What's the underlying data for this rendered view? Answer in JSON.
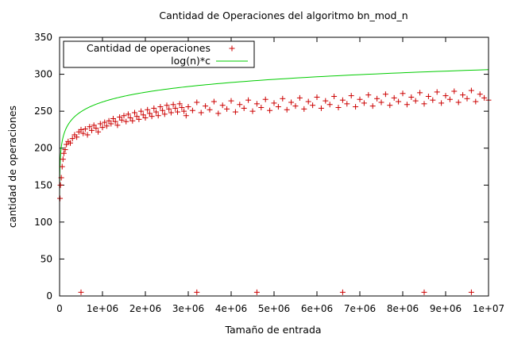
{
  "chart_data": {
    "type": "scatter",
    "title": "Cantidad de Operaciones del algoritmo bn_mod_n",
    "xlabel": "Tamaño de entrada",
    "ylabel": "cantidad de operaciones",
    "xlim": [
      0,
      10000000
    ],
    "ylim": [
      0,
      350
    ],
    "x_ticks": [
      0,
      1000000,
      2000000,
      3000000,
      4000000,
      5000000,
      6000000,
      7000000,
      8000000,
      9000000,
      10000000
    ],
    "x_tick_labels": [
      "0",
      "1e+06",
      "2e+06",
      "3e+06",
      "4e+06",
      "5e+06",
      "6e+06",
      "7e+06",
      "8e+06",
      "9e+06",
      "1e+07"
    ],
    "y_ticks": [
      0,
      50,
      100,
      150,
      200,
      250,
      300,
      350
    ],
    "y_tick_labels": [
      "0",
      "50",
      "100",
      "150",
      "200",
      "250",
      "300",
      "350"
    ],
    "grid": false,
    "legend_position": "top-left",
    "series": [
      {
        "name": "Cantidad de operaciones",
        "kind": "points",
        "marker": "plus",
        "color": "#cc0000",
        "points": [
          [
            10000,
            132
          ],
          [
            20000,
            150
          ],
          [
            40000,
            160
          ],
          [
            60000,
            175
          ],
          [
            80000,
            185
          ],
          [
            100000,
            193
          ],
          [
            130000,
            198
          ],
          [
            160000,
            205
          ],
          [
            200000,
            209
          ],
          [
            250000,
            207
          ],
          [
            300000,
            213
          ],
          [
            350000,
            218
          ],
          [
            400000,
            215
          ],
          [
            450000,
            222
          ],
          [
            500000,
            225
          ],
          [
            550000,
            220
          ],
          [
            600000,
            226
          ],
          [
            650000,
            218
          ],
          [
            700000,
            229
          ],
          [
            750000,
            224
          ],
          [
            800000,
            231
          ],
          [
            850000,
            227
          ],
          [
            900000,
            222
          ],
          [
            950000,
            233
          ],
          [
            1000000,
            228
          ],
          [
            1050000,
            235
          ],
          [
            1100000,
            230
          ],
          [
            1150000,
            237
          ],
          [
            1200000,
            233
          ],
          [
            1250000,
            240
          ],
          [
            1300000,
            236
          ],
          [
            1350000,
            231
          ],
          [
            1400000,
            242
          ],
          [
            1450000,
            238
          ],
          [
            1500000,
            244
          ],
          [
            1550000,
            236
          ],
          [
            1600000,
            246
          ],
          [
            1650000,
            241
          ],
          [
            1700000,
            237
          ],
          [
            1750000,
            248
          ],
          [
            1800000,
            243
          ],
          [
            1850000,
            239
          ],
          [
            1900000,
            250
          ],
          [
            1950000,
            245
          ],
          [
            2000000,
            241
          ],
          [
            2050000,
            252
          ],
          [
            2100000,
            247
          ],
          [
            2150000,
            243
          ],
          [
            2200000,
            254
          ],
          [
            2250000,
            249
          ],
          [
            2300000,
            244
          ],
          [
            2350000,
            256
          ],
          [
            2400000,
            251
          ],
          [
            2450000,
            246
          ],
          [
            2500000,
            258
          ],
          [
            2550000,
            253
          ],
          [
            2600000,
            248
          ],
          [
            2650000,
            259
          ],
          [
            2700000,
            254
          ],
          [
            2750000,
            249
          ],
          [
            2800000,
            260
          ],
          [
            2850000,
            255
          ],
          [
            2900000,
            250
          ],
          [
            2950000,
            244
          ],
          [
            3000000,
            256
          ],
          [
            3100000,
            251
          ],
          [
            3200000,
            262
          ],
          [
            3300000,
            248
          ],
          [
            3400000,
            257
          ],
          [
            3500000,
            252
          ],
          [
            3600000,
            263
          ],
          [
            3700000,
            247
          ],
          [
            3800000,
            258
          ],
          [
            3900000,
            253
          ],
          [
            4000000,
            264
          ],
          [
            4100000,
            249
          ],
          [
            4200000,
            259
          ],
          [
            4300000,
            254
          ],
          [
            4400000,
            265
          ],
          [
            4500000,
            250
          ],
          [
            4600000,
            260
          ],
          [
            4700000,
            255
          ],
          [
            4800000,
            266
          ],
          [
            4900000,
            251
          ],
          [
            5000000,
            261
          ],
          [
            5100000,
            256
          ],
          [
            5200000,
            267
          ],
          [
            5300000,
            252
          ],
          [
            5400000,
            262
          ],
          [
            5500000,
            257
          ],
          [
            5600000,
            268
          ],
          [
            5700000,
            253
          ],
          [
            5800000,
            263
          ],
          [
            5900000,
            258
          ],
          [
            6000000,
            269
          ],
          [
            6100000,
            254
          ],
          [
            6200000,
            264
          ],
          [
            6300000,
            259
          ],
          [
            6400000,
            270
          ],
          [
            6500000,
            255
          ],
          [
            6600000,
            265
          ],
          [
            6700000,
            260
          ],
          [
            6800000,
            271
          ],
          [
            6900000,
            256
          ],
          [
            7000000,
            266
          ],
          [
            7100000,
            261
          ],
          [
            7200000,
            272
          ],
          [
            7300000,
            257
          ],
          [
            7400000,
            267
          ],
          [
            7500000,
            262
          ],
          [
            7600000,
            273
          ],
          [
            7700000,
            258
          ],
          [
            7800000,
            268
          ],
          [
            7900000,
            263
          ],
          [
            8000000,
            274
          ],
          [
            8100000,
            259
          ],
          [
            8200000,
            269
          ],
          [
            8300000,
            264
          ],
          [
            8400000,
            275
          ],
          [
            8500000,
            260
          ],
          [
            8600000,
            270
          ],
          [
            8700000,
            265
          ],
          [
            8800000,
            276
          ],
          [
            8900000,
            261
          ],
          [
            9000000,
            271
          ],
          [
            9100000,
            266
          ],
          [
            9200000,
            277
          ],
          [
            9300000,
            262
          ],
          [
            9400000,
            272
          ],
          [
            9500000,
            267
          ],
          [
            9600000,
            278
          ],
          [
            9700000,
            263
          ],
          [
            9800000,
            273
          ],
          [
            9900000,
            268
          ],
          [
            10000000,
            265
          ],
          [
            500000,
            5
          ],
          [
            3200000,
            5
          ],
          [
            4600000,
            5
          ],
          [
            6600000,
            5
          ],
          [
            8500000,
            5
          ],
          [
            9600000,
            5
          ]
        ]
      },
      {
        "name": "log(n)*c",
        "kind": "line",
        "color": "#00cc00",
        "function": "c*ln(n)",
        "c": 19.0
      }
    ]
  }
}
